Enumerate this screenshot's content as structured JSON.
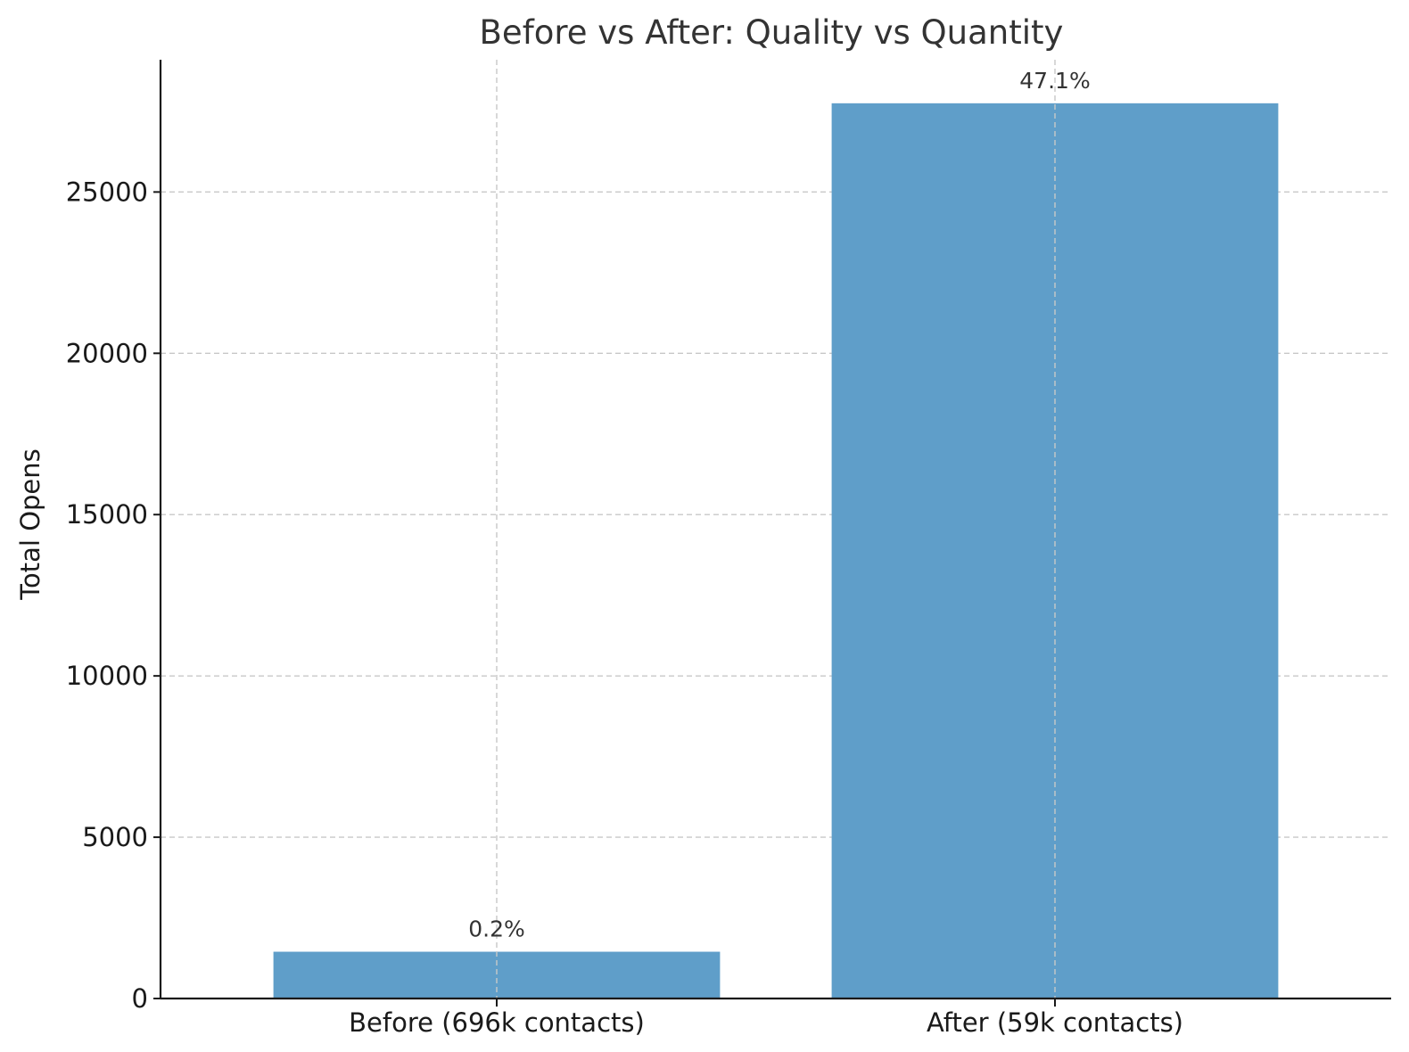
{
  "chart_data": {
    "type": "bar",
    "title": "Before vs After: Quality vs Quantity",
    "xlabel": "",
    "ylabel": "Total Opens",
    "categories": [
      "Before (696k contacts)",
      "After (59k contacts)"
    ],
    "values": [
      1450,
      27750
    ],
    "data_labels": [
      "0.2%",
      "47.1%"
    ],
    "ylim": [
      0,
      29100
    ],
    "yticks": [
      0,
      5000,
      10000,
      15000,
      20000,
      25000
    ],
    "grid": true,
    "bar_color": "#5f9ec9"
  }
}
